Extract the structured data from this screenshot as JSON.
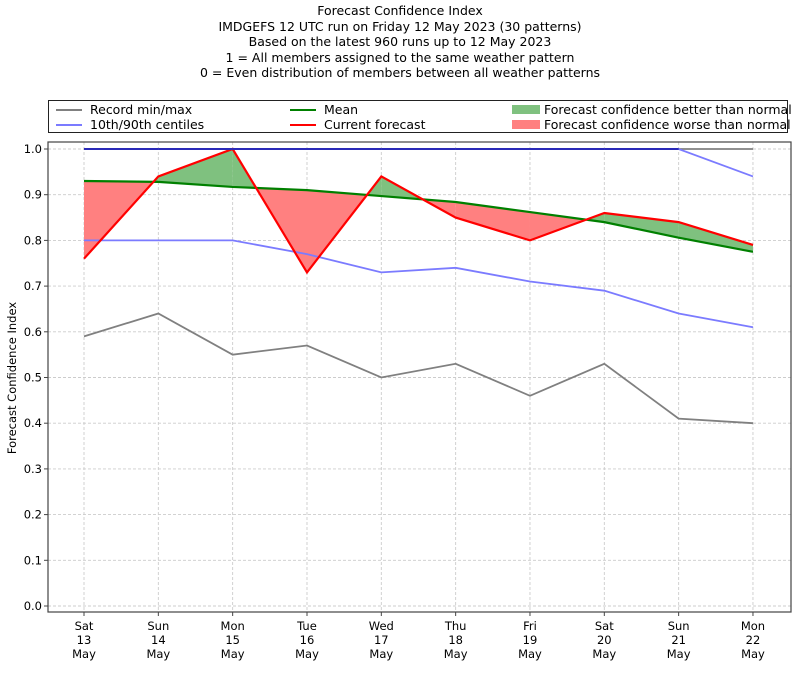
{
  "chart_data": {
    "type": "line",
    "title": "Forecast Confidence Index",
    "subtitle_lines": [
      "IMDGEFS 12 UTC run on Friday 12 May 2023 (30 patterns)",
      "Based on the latest 960 runs up to 12 May 2023",
      "1 = All members assigned to the same weather pattern",
      "0 = Even distribution of members between all weather patterns"
    ],
    "xlabel": "",
    "ylabel": "Forecast Confidence Index",
    "ylim": [
      0.0,
      1.0
    ],
    "yticks": [
      "0.0",
      "0.1",
      "0.2",
      "0.3",
      "0.4",
      "0.5",
      "0.6",
      "0.7",
      "0.8",
      "0.9",
      "1.0"
    ],
    "grid": true,
    "legend_placement": "top (above plot)",
    "categories": [
      [
        "Sat",
        "13",
        "May"
      ],
      [
        "Sun",
        "14",
        "May"
      ],
      [
        "Mon",
        "15",
        "May"
      ],
      [
        "Tue",
        "16",
        "May"
      ],
      [
        "Wed",
        "17",
        "May"
      ],
      [
        "Thu",
        "18",
        "May"
      ],
      [
        "Fri",
        "19",
        "May"
      ],
      [
        "Sat",
        "20",
        "May"
      ],
      [
        "Sun",
        "21",
        "May"
      ],
      [
        "Mon",
        "22",
        "May"
      ]
    ],
    "series": [
      {
        "name": "Record max",
        "legend": "Record min/max",
        "color": "#808080",
        "values": [
          1.0,
          1.0,
          1.0,
          1.0,
          1.0,
          1.0,
          1.0,
          1.0,
          1.0,
          1.0
        ]
      },
      {
        "name": "Record min",
        "legend": "Record min/max",
        "color": "#808080",
        "values": [
          0.59,
          0.64,
          0.55,
          0.57,
          0.5,
          0.53,
          0.46,
          0.53,
          0.41,
          0.4
        ]
      },
      {
        "name": "90th centile",
        "legend": "10th/90th centiles",
        "color": "#7b7bff",
        "values": [
          1.0,
          1.0,
          1.0,
          1.0,
          1.0,
          1.0,
          1.0,
          1.0,
          1.0,
          0.94
        ]
      },
      {
        "name": "10th centile",
        "legend": "10th/90th centiles",
        "color": "#7b7bff",
        "values": [
          0.8,
          0.8,
          0.8,
          0.77,
          0.73,
          0.74,
          0.71,
          0.69,
          0.64,
          0.61
        ]
      },
      {
        "name": "Mean",
        "legend": "Mean",
        "color": "#008000",
        "values": [
          0.93,
          0.928,
          0.917,
          0.91,
          0.897,
          0.884,
          0.862,
          0.84,
          0.806,
          0.775
        ]
      },
      {
        "name": "Current forecast",
        "legend": "Current forecast",
        "color": "#ff0000",
        "values": [
          0.76,
          0.94,
          1.0,
          0.73,
          0.94,
          0.85,
          0.8,
          0.86,
          0.84,
          0.79
        ]
      }
    ],
    "fills": [
      {
        "name": "Forecast confidence better than normal",
        "color": "#7fc17f",
        "condition": "forecast > mean"
      },
      {
        "name": "Forecast confidence worse than normal",
        "color": "#ff8080",
        "condition": "forecast < mean"
      }
    ]
  },
  "legend": {
    "items": [
      {
        "label": "Record min/max",
        "kind": "line",
        "color": "#808080"
      },
      {
        "label": "10th/90th centiles",
        "kind": "line",
        "color": "#7b7bff"
      },
      {
        "label": "Mean",
        "kind": "line",
        "color": "#008000"
      },
      {
        "label": "Current forecast",
        "kind": "line",
        "color": "#ff0000"
      },
      {
        "label": "Forecast confidence better than normal",
        "kind": "patch",
        "color": "#7fc17f"
      },
      {
        "label": "Forecast confidence worse than normal",
        "kind": "patch",
        "color": "#ff8080"
      }
    ]
  }
}
